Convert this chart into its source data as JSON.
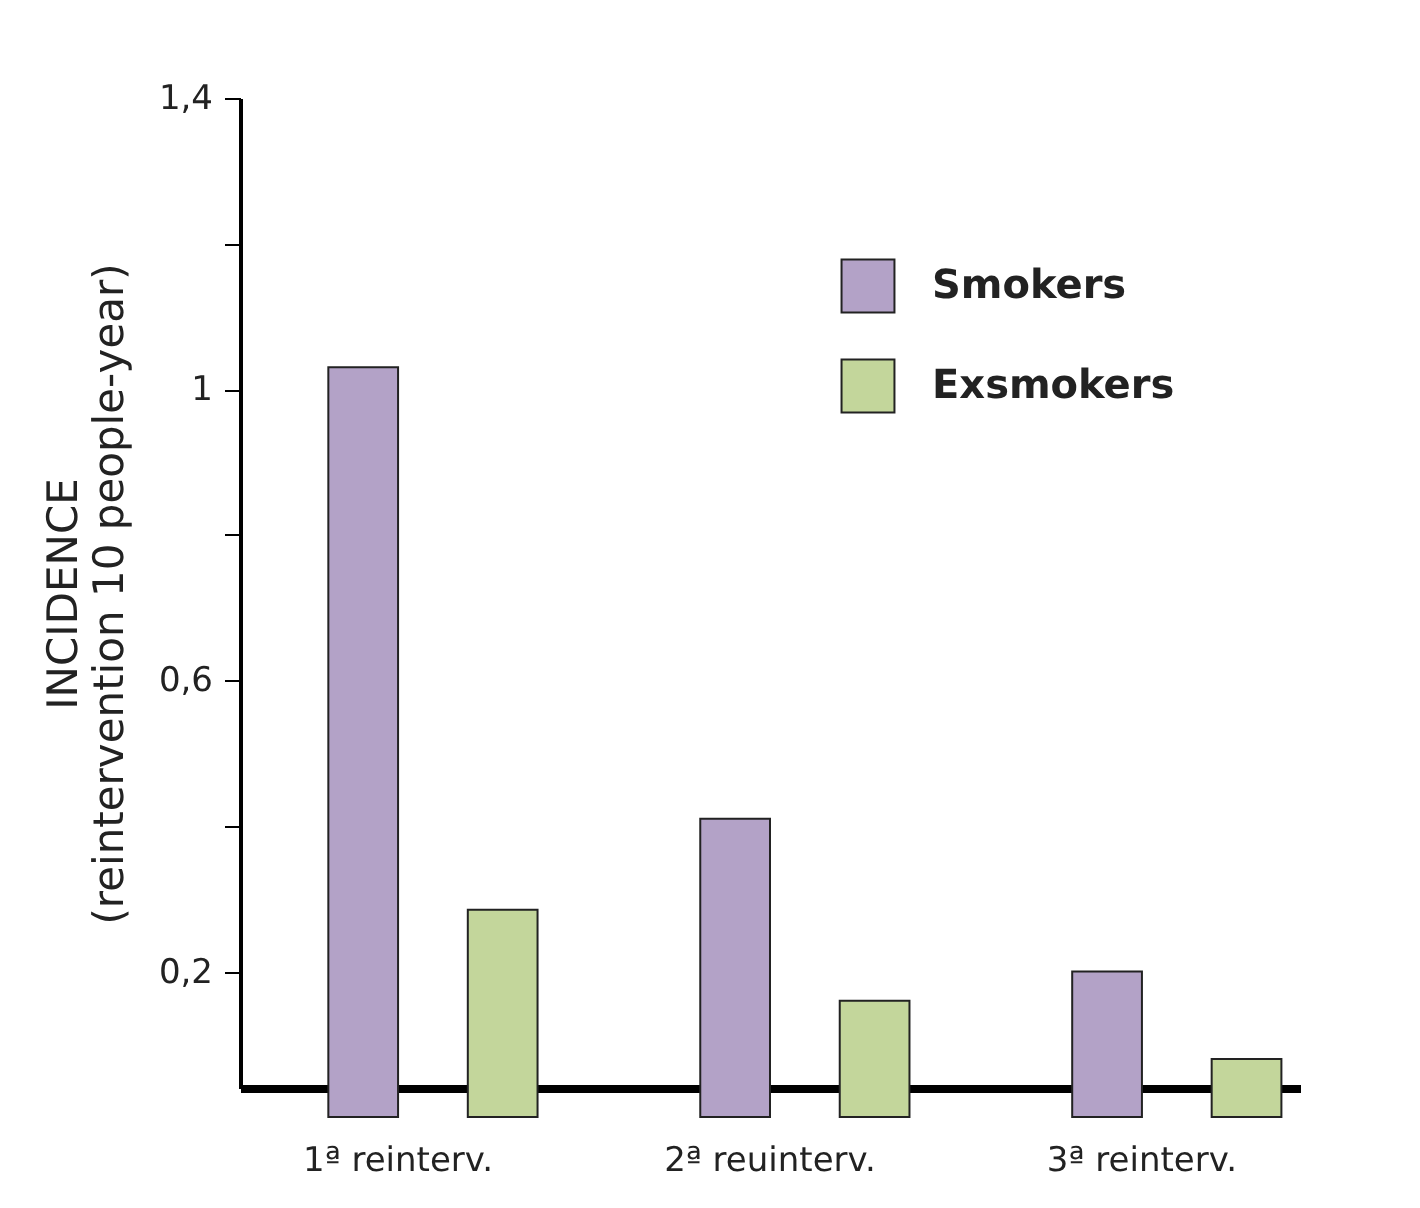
{
  "chart_data": {
    "type": "bar",
    "ylabel": "INCIDENCE\n(reintervention 10 people-year)",
    "categories": [
      "1ª reinterv.",
      "2ª reuinterv.",
      "3ª reinterv."
    ],
    "series": [
      {
        "name": "Smokers",
        "color": "#b3a2c7",
        "values": [
          1.03,
          0.41,
          0.2
        ]
      },
      {
        "name": "Exsmokers",
        "color": "#c3d69b",
        "values": [
          0.285,
          0.16,
          0.08
        ]
      }
    ],
    "ylim": [
      0.04,
      1.4
    ],
    "yticks": [
      {
        "value": 1.4,
        "label": "1,4"
      },
      {
        "value": 1.2,
        "label": null
      },
      {
        "value": 1,
        "label": "1"
      },
      {
        "value": 0.8,
        "label": null
      },
      {
        "value": 0.6,
        "label": "0,6"
      },
      {
        "value": 0.4,
        "label": null
      },
      {
        "value": 0.2,
        "label": "0,2"
      }
    ],
    "grid": false,
    "legend": "top right"
  }
}
